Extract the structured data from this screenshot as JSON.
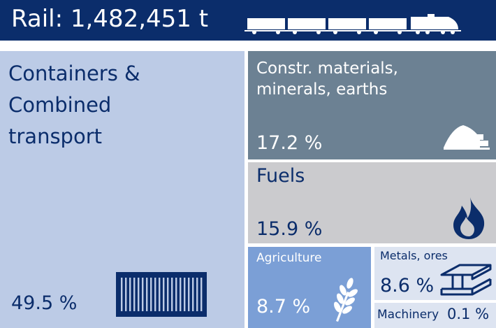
{
  "header": {
    "title": "Rail: 1,482,451 t"
  },
  "colors": {
    "header_bg": "#0b2d6b",
    "containers": "#bccbe6",
    "construction": "#6c8193",
    "fuels": "#cbcbce",
    "agriculture": "#7b9fd6",
    "metals": "#dde4f1",
    "machinery": "#dde4f1",
    "text_dark": "#0b2d6b"
  },
  "icons": {
    "header": "freight-train-icon",
    "containers": "shipping-container-icon",
    "construction": "gravel-pile-bricks-icon",
    "fuels": "flame-icon",
    "agriculture": "wheat-icon",
    "metals": "steel-beam-icon"
  },
  "chart_data": {
    "type": "treemap",
    "title": "Rail: 1,482,451 t",
    "unit": "%",
    "categories": [
      "Containers & Combined transport",
      "Constr. materials, minerals, earths",
      "Fuels",
      "Agriculture",
      "Metals, ores",
      "Machinery"
    ],
    "values": [
      49.5,
      17.2,
      15.9,
      8.7,
      8.6,
      0.1
    ],
    "labels": {
      "containers": {
        "name": "Containers & Combined transport",
        "value": "49.5 %"
      },
      "construction": {
        "name": "Constr. materials, minerals, earths",
        "value": "17.2 %"
      },
      "fuels": {
        "name": "Fuels",
        "value": "15.9 %"
      },
      "agriculture": {
        "name": "Agriculture",
        "value": "8.7 %"
      },
      "metals": {
        "name": "Metals, ores",
        "value": "8.6 %"
      },
      "machinery": {
        "name": "Machinery",
        "value": "0.1 %"
      }
    }
  }
}
